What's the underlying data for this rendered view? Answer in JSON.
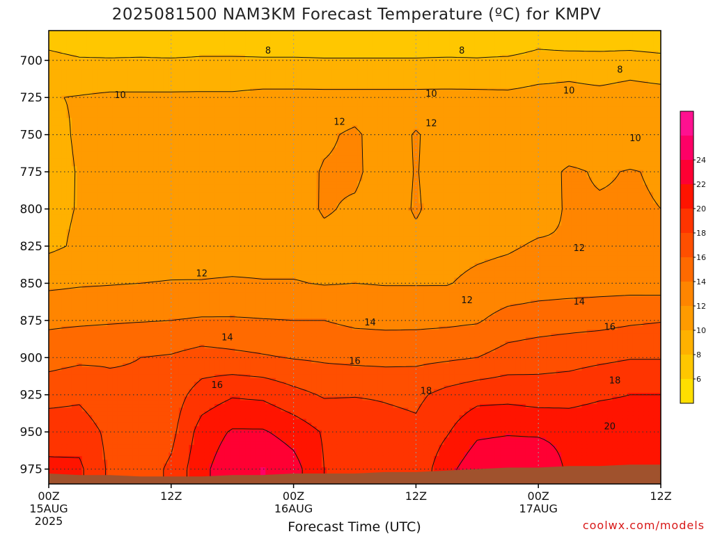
{
  "header": {
    "title": "2025081500 NAM3KM Forecast Temperature (ºC) for KMPV"
  },
  "footer": {
    "credit": "coolwx.com/models"
  },
  "chart_data": {
    "type": "heatmap",
    "title": "2025081500 NAM3KM Forecast Temperature (ºC) for KMPV",
    "xlabel": "Forecast Time (UTC)",
    "ylabel": "",
    "x_hours": [
      0,
      3,
      6,
      9,
      12,
      15,
      18,
      21,
      24,
      27,
      30,
      33,
      36,
      39,
      42,
      45,
      48,
      51,
      54,
      57,
      60
    ],
    "y_pressure_hpa": [
      690,
      700,
      725,
      750,
      775,
      800,
      825,
      850,
      875,
      900,
      925,
      950,
      975
    ],
    "temperature_c": [
      [
        7.6,
        6.9,
        6.5,
        6.9,
        6.4,
        6.9,
        6.9,
        6.9,
        6.9,
        6.9,
        6.9,
        6.9,
        6.9,
        6.9,
        7.0,
        6.9,
        7.7,
        7.3,
        7.4,
        7.4,
        7.0
      ],
      [
        8.9,
        8.3,
        8.3,
        8.3,
        8.3,
        8.4,
        8.4,
        8.3,
        8.3,
        8.2,
        8.2,
        8.2,
        8.2,
        8.3,
        8.2,
        8.4,
        8.9,
        9.2,
        8.9,
        9.2,
        8.9
      ],
      [
        9.9,
        10.1,
        10.3,
        10.3,
        10.3,
        10.3,
        10.3,
        10.5,
        10.5,
        10.5,
        10.5,
        10.5,
        10.5,
        10.5,
        10.5,
        10.4,
        10.6,
        10.6,
        10.5,
        10.7,
        10.6
      ],
      [
        9.5,
        10.2,
        10.5,
        10.6,
        10.6,
        10.6,
        10.7,
        10.8,
        10.9,
        11.6,
        12.4,
        10.7,
        12.2,
        10.8,
        10.8,
        10.5,
        10.8,
        10.4,
        10.8,
        10.7,
        10.7
      ],
      [
        9.4,
        10.1,
        10.5,
        10.6,
        10.7,
        10.7,
        10.8,
        10.9,
        11.0,
        12.2,
        12.4,
        10.9,
        12.1,
        11.0,
        11.1,
        10.8,
        11.1,
        12.3,
        11.8,
        12.1,
        11.8
      ],
      [
        9.5,
        10.1,
        10.5,
        10.7,
        10.8,
        10.9,
        10.9,
        11.0,
        11.1,
        12.2,
        11.7,
        11.0,
        12.2,
        11.1,
        11.2,
        11.1,
        11.3,
        12.2,
        12.2,
        12.2,
        12.0
      ],
      [
        9.6,
        10.3,
        10.7,
        10.9,
        11.0,
        11.1,
        11.1,
        11.2,
        11.2,
        11.4,
        11.4,
        11.3,
        11.5,
        11.4,
        11.6,
        11.8,
        12.2,
        12.1,
        12.6,
        12.2,
        12.3
      ],
      [
        11.6,
        11.8,
        11.9,
        12.0,
        12.1,
        12.1,
        12.2,
        12.1,
        12.1,
        11.9,
        12.0,
        11.9,
        11.9,
        11.9,
        12.4,
        12.7,
        13.0,
        13.1,
        13.2,
        13.2,
        13.1
      ],
      [
        13.6,
        13.7,
        13.8,
        13.9,
        14.0,
        14.2,
        14.2,
        14.1,
        14.0,
        14.0,
        13.6,
        13.5,
        13.5,
        13.6,
        13.8,
        14.8,
        15.1,
        15.3,
        15.4,
        15.7,
        15.9
      ],
      [
        15.2,
        15.6,
        15.8,
        16.0,
        16.2,
        16.8,
        16.5,
        16.2,
        15.9,
        15.7,
        15.5,
        15.4,
        15.5,
        15.7,
        16.0,
        16.8,
        17.1,
        17.3,
        17.6,
        17.9,
        17.9
      ],
      [
        17.3,
        17.6,
        16.5,
        16.3,
        17.0,
        18.9,
        19.8,
        19.6,
        18.6,
        17.8,
        17.9,
        17.8,
        17.6,
        18.6,
        19.3,
        19.4,
        19.1,
        19.2,
        19.7,
        20.0,
        20.0
      ],
      [
        19.2,
        19.1,
        17.5,
        16.3,
        17.4,
        20.9,
        22.2,
        22.2,
        21.2,
        19.8,
        19.4,
        18.7,
        18.4,
        19.8,
        21.6,
        21.8,
        21.7,
        21.4,
        21.5,
        21.4,
        21.3
      ],
      [
        20.4,
        20.4,
        17.6,
        16.8,
        18.4,
        21.5,
        23.3,
        24.1,
        22.8,
        20.0,
        18.9,
        18.1,
        18.6,
        21.3,
        23.4,
        23.8,
        23.8,
        21.6,
        21.0,
        20.6,
        20.7
      ]
    ],
    "contour_labels": [
      {
        "x_hour": 21.5,
        "p_hpa": 693,
        "text": "8"
      },
      {
        "x_hour": 40.5,
        "p_hpa": 693,
        "text": "8"
      },
      {
        "x_hour": 56.0,
        "p_hpa": 706,
        "text": "8"
      },
      {
        "x_hour": 7.0,
        "p_hpa": 723,
        "text": "10"
      },
      {
        "x_hour": 37.5,
        "p_hpa": 722,
        "text": "10"
      },
      {
        "x_hour": 51.0,
        "p_hpa": 720,
        "text": "10"
      },
      {
        "x_hour": 57.5,
        "p_hpa": 752,
        "text": "10"
      },
      {
        "x_hour": 28.5,
        "p_hpa": 741,
        "text": "12"
      },
      {
        "x_hour": 37.5,
        "p_hpa": 742,
        "text": "12"
      },
      {
        "x_hour": 52.0,
        "p_hpa": 826,
        "text": "12"
      },
      {
        "x_hour": 15.0,
        "p_hpa": 843,
        "text": "12"
      },
      {
        "x_hour": 41.0,
        "p_hpa": 861,
        "text": "12"
      },
      {
        "x_hour": 52.0,
        "p_hpa": 862,
        "text": "14"
      },
      {
        "x_hour": 31.5,
        "p_hpa": 876,
        "text": "14"
      },
      {
        "x_hour": 17.5,
        "p_hpa": 886,
        "text": "14"
      },
      {
        "x_hour": 55.0,
        "p_hpa": 879,
        "text": "16"
      },
      {
        "x_hour": 30.0,
        "p_hpa": 902,
        "text": "16"
      },
      {
        "x_hour": 16.5,
        "p_hpa": 918,
        "text": "16"
      },
      {
        "x_hour": 55.5,
        "p_hpa": 915,
        "text": "18"
      },
      {
        "x_hour": 37.0,
        "p_hpa": 922,
        "text": "18"
      },
      {
        "x_hour": 55.0,
        "p_hpa": 946,
        "text": "20"
      }
    ],
    "xaxis": {
      "range_hours": [
        0,
        60
      ],
      "ticks": [
        {
          "hour": 0,
          "label": "00Z",
          "sub": "15AUG",
          "sub2": "2025"
        },
        {
          "hour": 12,
          "label": "12Z",
          "sub": "",
          "sub2": ""
        },
        {
          "hour": 24,
          "label": "00Z",
          "sub": "16AUG",
          "sub2": ""
        },
        {
          "hour": 36,
          "label": "12Z",
          "sub": "",
          "sub2": ""
        },
        {
          "hour": 48,
          "label": "00Z",
          "sub": "17AUG",
          "sub2": ""
        },
        {
          "hour": 60,
          "label": "12Z",
          "sub": "",
          "sub2": ""
        }
      ]
    },
    "yaxis": {
      "range_hpa": [
        680,
        985
      ],
      "ticks": [
        700,
        725,
        750,
        775,
        800,
        825,
        850,
        875,
        900,
        925,
        950,
        975
      ]
    },
    "surface_pressure_hpa": [
      978,
      979,
      979,
      980,
      980,
      980,
      979,
      979,
      978,
      978,
      978,
      977,
      977,
      976,
      975,
      974,
      974,
      973,
      973,
      972,
      972
    ],
    "colorbar": {
      "levels": [
        4,
        6,
        8,
        10,
        12,
        14,
        16,
        18,
        20,
        22,
        24,
        26
      ],
      "labels": [
        6,
        8,
        10,
        12,
        14,
        16,
        18,
        20,
        22,
        24
      ],
      "colors": [
        "#ffdf00",
        "#ffc700",
        "#ffb100",
        "#ff9b00",
        "#ff8500",
        "#ff6a00",
        "#ff4f00",
        "#ff3400",
        "#ff1400",
        "#ff0033",
        "#ff0066",
        "#ff1190"
      ]
    },
    "ground_color": "#a0522d",
    "grid": true,
    "colorbar_placement": "right"
  }
}
